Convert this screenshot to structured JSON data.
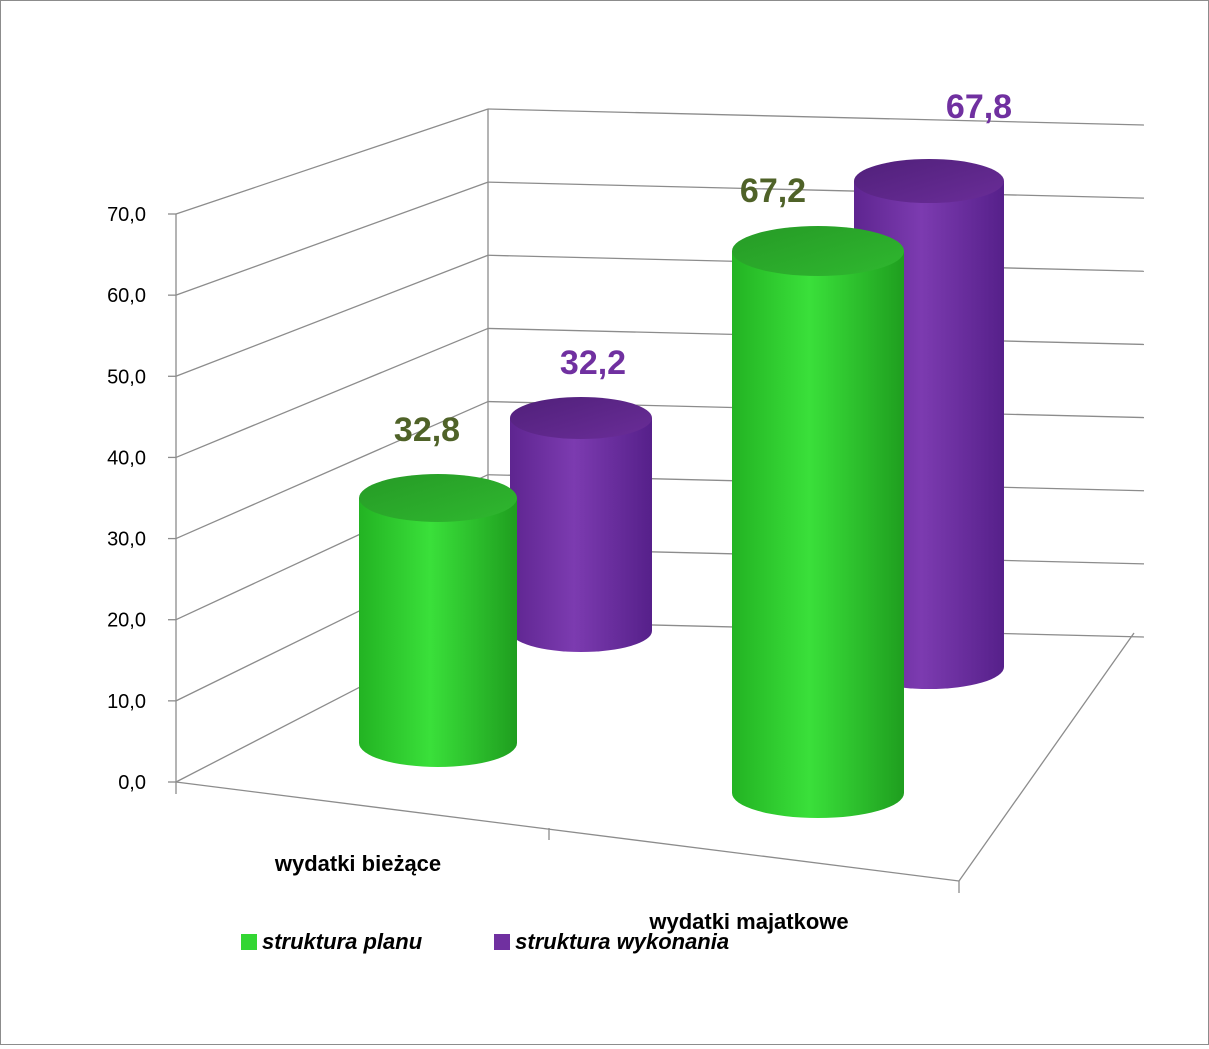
{
  "chart_data": {
    "type": "bar",
    "variant": "3d-cylinder",
    "categories": [
      "wydatki bieżące",
      "wydatki majatkowe"
    ],
    "series": [
      {
        "name": "struktura planu",
        "values": [
          32.8,
          67.2
        ],
        "color": "#33d633",
        "label_color": "#4f6228"
      },
      {
        "name": "struktura wykonania",
        "values": [
          32.2,
          67.8
        ],
        "color": "#7030a0",
        "label_color": "#7030a0"
      }
    ],
    "data_labels": [
      [
        "32,8",
        "67,2"
      ],
      [
        "32,2",
        "67,8"
      ]
    ],
    "y_ticks": [
      "0,0",
      "10,0",
      "20,0",
      "30,0",
      "40,0",
      "50,0",
      "60,0",
      "70,0"
    ],
    "ylim": [
      0,
      70
    ],
    "grid": true,
    "legend_position": "bottom",
    "title": "",
    "xlabel": "",
    "ylabel": ""
  }
}
